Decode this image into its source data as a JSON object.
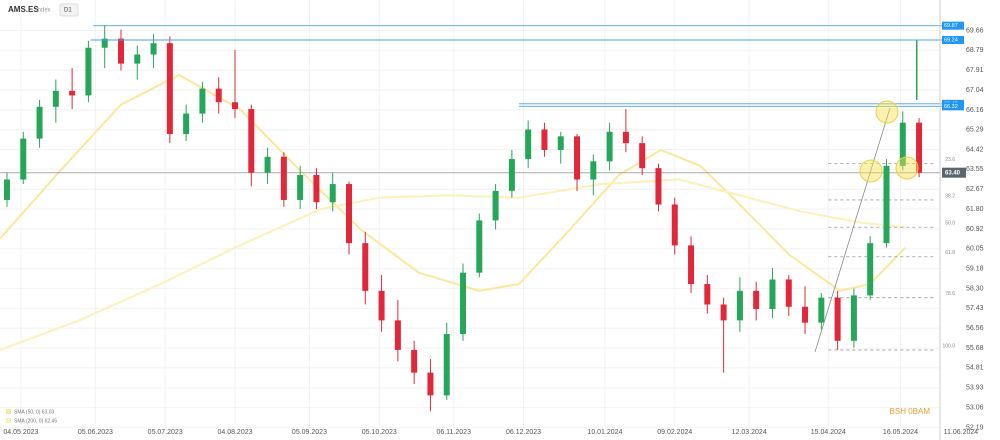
{
  "chart_data": {
    "type": "candlestick",
    "title": "AMS.ES",
    "subtitle": "Index",
    "timeframe": "D1",
    "watermark": "BSH 0BAM",
    "up_color": "#26a65b",
    "down_color": "#e0283a",
    "x": [
      "28.04.2023",
      "05.05.2023",
      "12.05.2023",
      "19.05.2023",
      "26.05.2023",
      "02.06.2023",
      "09.06.2023",
      "16.06.2023",
      "23.06.2023",
      "30.06.2023",
      "07.07.2023",
      "14.07.2023",
      "21.07.2023",
      "28.07.2023",
      "04.08.2023",
      "11.08.2023",
      "18.08.2023",
      "25.08.2023",
      "01.09.2023",
      "08.09.2023",
      "15.09.2023",
      "22.09.2023",
      "29.09.2023",
      "06.10.2023",
      "13.10.2023",
      "20.10.2023",
      "27.10.2023",
      "03.11.2023",
      "10.11.2023",
      "17.11.2023",
      "24.11.2023",
      "01.12.2023",
      "08.12.2023",
      "15.12.2023",
      "22.12.2023",
      "29.12.2023",
      "05.01.2024",
      "12.01.2024",
      "19.01.2024",
      "26.01.2024",
      "02.02.2024",
      "09.02.2024",
      "16.02.2024",
      "23.02.2024",
      "01.03.2024",
      "08.03.2024",
      "15.03.2024",
      "22.03.2024",
      "29.03.2024",
      "05.04.2024",
      "12.04.2024",
      "19.04.2024",
      "26.04.2024",
      "03.05.2024",
      "10.05.2024",
      "17.05.2024",
      "24.05.2024"
    ],
    "open": [
      62.2,
      63.1,
      64.9,
      66.3,
      67.0,
      66.8,
      68.9,
      69.3,
      68.2,
      68.6,
      69.1,
      65.1,
      66.0,
      67.1,
      66.5,
      66.2,
      63.4,
      64.1,
      62.2,
      63.3,
      62.1,
      62.9,
      60.3,
      58.2,
      56.9,
      55.6,
      54.6,
      53.6,
      56.3,
      59.0,
      61.3,
      62.6,
      64.0,
      65.3,
      64.4,
      65.0,
      63.1,
      63.9,
      65.2,
      64.7,
      63.6,
      62.0,
      60.2,
      58.5,
      57.6,
      56.9,
      58.2,
      57.4,
      58.7,
      57.5,
      56.8,
      57.9,
      56.0,
      58.0,
      60.3,
      63.7,
      65.6
    ],
    "high": [
      63.4,
      65.2,
      66.6,
      67.5,
      68.0,
      69.2,
      69.9,
      69.7,
      69.0,
      69.5,
      69.4,
      66.4,
      67.4,
      67.6,
      68.8,
      66.4,
      64.5,
      64.3,
      63.7,
      63.6,
      63.4,
      63.0,
      60.8,
      58.9,
      57.8,
      56.0,
      55.2,
      56.8,
      59.4,
      61.6,
      62.9,
      64.4,
      65.7,
      65.6,
      65.2,
      65.1,
      64.2,
      65.6,
      66.2,
      65.0,
      63.8,
      62.3,
      60.6,
      58.9,
      57.9,
      58.8,
      58.6,
      59.2,
      58.9,
      58.4,
      58.1,
      58.2,
      58.3,
      60.6,
      64.0,
      66.1,
      65.8
    ],
    "low": [
      61.9,
      62.9,
      64.5,
      65.6,
      66.2,
      66.5,
      68.0,
      67.9,
      67.5,
      68.0,
      64.7,
      64.8,
      65.6,
      66.0,
      65.8,
      62.8,
      62.9,
      61.9,
      61.8,
      61.8,
      61.7,
      59.8,
      57.6,
      56.4,
      55.1,
      54.1,
      52.9,
      53.4,
      56.0,
      58.8,
      60.9,
      62.3,
      63.6,
      64.1,
      63.8,
      62.6,
      62.4,
      63.5,
      64.3,
      63.3,
      61.7,
      59.8,
      58.1,
      57.2,
      54.6,
      56.4,
      56.9,
      57.0,
      57.1,
      56.3,
      56.5,
      55.6,
      55.7,
      57.8,
      60.1,
      63.5,
      63.2
    ],
    "close": [
      63.1,
      64.9,
      66.3,
      67.0,
      66.8,
      68.9,
      69.3,
      68.2,
      68.6,
      69.1,
      65.1,
      66.0,
      67.1,
      66.5,
      66.2,
      63.4,
      64.1,
      62.2,
      63.3,
      62.1,
      62.9,
      60.3,
      58.2,
      56.9,
      55.6,
      54.6,
      53.6,
      56.3,
      59.0,
      61.3,
      62.6,
      64.0,
      65.3,
      64.4,
      65.0,
      63.1,
      63.9,
      65.2,
      64.7,
      63.6,
      62.0,
      60.2,
      58.5,
      57.6,
      56.9,
      58.2,
      57.4,
      58.7,
      57.5,
      56.8,
      57.9,
      56.0,
      58.0,
      60.3,
      63.7,
      65.6,
      63.4
    ],
    "series": [
      {
        "name": "SMA (50, 0) 63.03",
        "color": "#fbe79a",
        "x": [
          "25.04.2023",
          "21.05.2023",
          "16.06.2023",
          "11.07.2023",
          "06.08.2023",
          "01.09.2023",
          "27.09.2023",
          "22.10.2023",
          "17.11.2023",
          "04.12.2023",
          "26.12.2023",
          "16.01.2024",
          "03.02.2024",
          "20.02.2024",
          "08.03.2024",
          "29.03.2024",
          "20.04.2024",
          "03.05.2024",
          "18.05.2024"
        ],
        "values": [
          60.5,
          63.5,
          66.4,
          67.7,
          66.2,
          63.5,
          60.9,
          59.0,
          58.2,
          58.5,
          60.9,
          63.3,
          64.4,
          63.7,
          62.0,
          59.8,
          58.2,
          58.5,
          60.1
        ]
      },
      {
        "name": "SMA (200, 0) 62.45",
        "color": "#fdf0b8",
        "x": [
          "25.04.2023",
          "29.05.2023",
          "03.07.2023",
          "06.08.2023",
          "10.09.2023",
          "05.10.2023",
          "04.11.2023",
          "04.12.2023",
          "08.01.2024",
          "11.02.2024",
          "08.03.2024",
          "03.04.2024",
          "29.04.2024",
          "18.05.2024"
        ],
        "values": [
          55.6,
          56.9,
          58.5,
          60.2,
          61.8,
          62.3,
          62.4,
          62.3,
          62.9,
          63.1,
          62.4,
          61.7,
          61.2,
          61.0
        ]
      }
    ],
    "levels": [
      {
        "value": 69.87,
        "start": "04.06.2023"
      },
      {
        "value": 69.24,
        "start": "03.06.2023"
      },
      {
        "value": 66.43,
        "start": "04.12.2023"
      },
      {
        "value": 66.32,
        "start": "04.12.2023"
      }
    ],
    "fib_start": "15.04.2024",
    "fib_levels": [
      {
        "value": 63.8,
        "label": "23.6"
      },
      {
        "value": 62.2,
        "label": "38.2"
      },
      {
        "value": 61.0,
        "label": "50.0"
      },
      {
        "value": 59.7,
        "label": "61.8"
      },
      {
        "value": 57.9,
        "label": "78.6"
      },
      {
        "value": 55.6,
        "label": "100.0"
      }
    ],
    "target": {
      "x": "23.05.2024",
      "from": 66.6,
      "to": 69.24
    },
    "last_price": {
      "value": 63.4,
      "label": "63.40"
    },
    "xlim": [
      "25.04.2023",
      "02.06.2024"
    ],
    "xticks": [
      "04.05.2023",
      "05.06.2023",
      "05.07.2023",
      "04.08.2023",
      "05.09.2023",
      "05.10.2023",
      "06.11.2023",
      "06.12.2023",
      "10.01.2024",
      "09.02.2024",
      "12.03.2024",
      "15.04.2024",
      "16.05.2024",
      "11.06.2024"
    ],
    "ylim": [
      51.9,
      71.0
    ],
    "yticks": [
      69.66,
      68.79,
      67.91,
      67.04,
      66.16,
      65.29,
      64.42,
      63.55,
      62.67,
      {
        "value": 61.8,
        "label": "61.80"
      },
      60.92,
      60.05,
      59.18,
      {
        "value": 58.3,
        "label": "58.30"
      },
      57.43,
      56.56,
      55.68,
      54.81,
      53.93,
      53.06,
      52.19
    ],
    "grid": true
  }
}
